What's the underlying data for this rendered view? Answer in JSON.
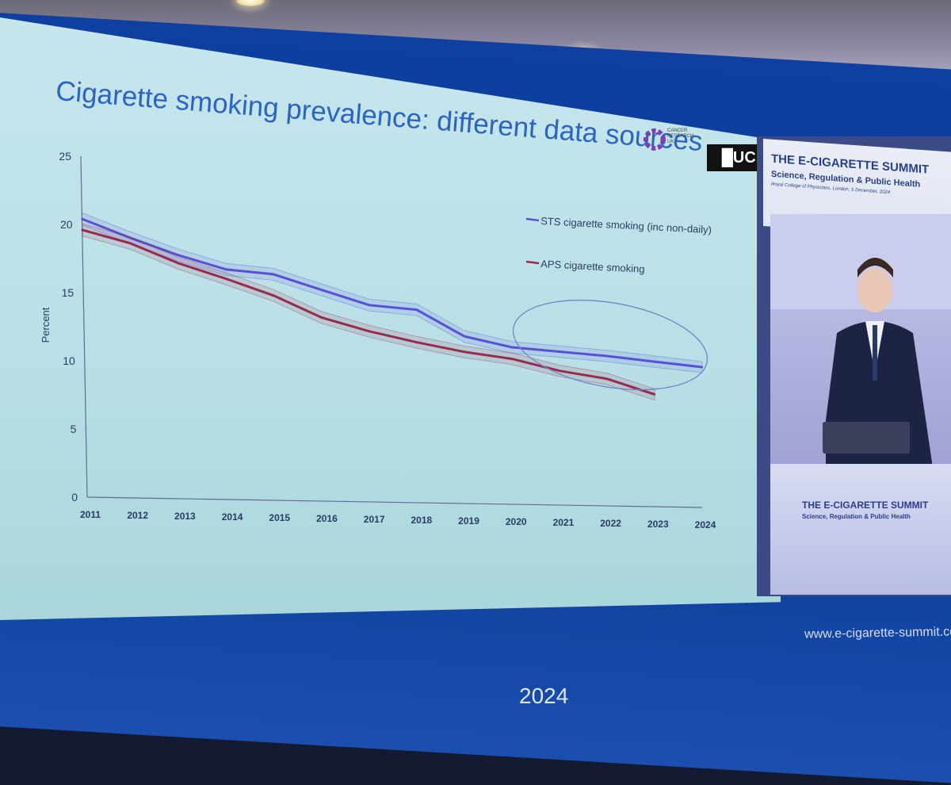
{
  "slide": {
    "title": "Cigarette smoking prevalence: different data sources",
    "logo_text": "CANCER RESEARCH UK",
    "ucl_text": "█UCL"
  },
  "chart_data": {
    "type": "line",
    "title": "Cigarette smoking prevalence: different data sources",
    "xlabel": "",
    "ylabel": "Percent",
    "ylim": [
      0,
      25
    ],
    "yticks": [
      0,
      5,
      10,
      15,
      20,
      25
    ],
    "x": [
      2011,
      2012,
      2013,
      2014,
      2015,
      2016,
      2017,
      2018,
      2019,
      2020,
      2021,
      2022,
      2023,
      2024
    ],
    "series": [
      {
        "name": "STS cigarette smoking (inc non-daily)",
        "color": "#5b4fd6",
        "x": [
          2011,
          2012,
          2013,
          2014,
          2015,
          2016,
          2017,
          2018,
          2019,
          2020,
          2021,
          2022,
          2023,
          2024
        ],
        "values": [
          20.4,
          19.2,
          18.1,
          17.2,
          17.0,
          16.0,
          15.0,
          14.8,
          12.9,
          12.2,
          12.0,
          11.8,
          11.5,
          11.2
        ]
      },
      {
        "name": "APS cigarette smoking",
        "color": "#9a2a4a",
        "x": [
          2011,
          2012,
          2013,
          2014,
          2015,
          2016,
          2017,
          2018,
          2019,
          2020,
          2021,
          2022,
          2023
        ],
        "values": [
          19.6,
          18.8,
          17.5,
          16.5,
          15.4,
          13.9,
          13.0,
          12.3,
          11.7,
          11.3,
          10.5,
          10.0,
          8.9
        ]
      }
    ],
    "annotations": [
      "ellipse around 2020-2024"
    ],
    "legend": "top-right",
    "grid": false
  },
  "side": {
    "summit_title": "THE E-CIGARETTE SUMMIT",
    "summit_subtitle": "Science, Regulation & Public Health",
    "summit_venue": "Royal College of Physicians, London, 5 December, 2024"
  },
  "footer": {
    "url": "www.e-cigarette-summit.co",
    "year": "2024"
  }
}
